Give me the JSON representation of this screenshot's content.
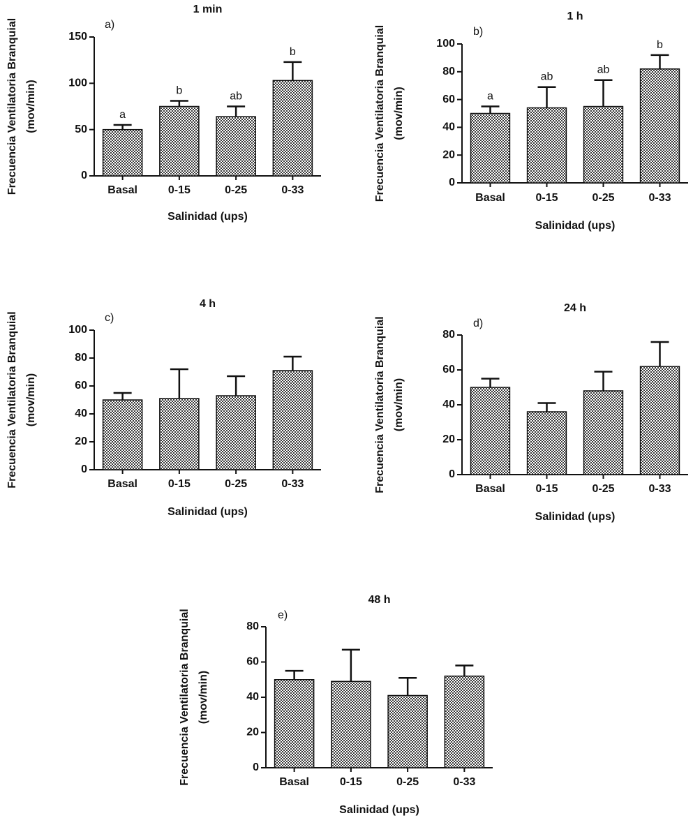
{
  "chart_data": [
    {
      "type": "bar",
      "panel_label": "a)",
      "title": "1 min",
      "xlabel": "Salinidad (ups)",
      "ylabel_line1": "Frecuencia Ventilatoria Branquial",
      "ylabel_line2": "(mov/min)",
      "categories": [
        "Basal",
        "0-15",
        "0-25",
        "0-33"
      ],
      "values": [
        50,
        75,
        64,
        103
      ],
      "error_upper": [
        55,
        81,
        75,
        123
      ],
      "significance": [
        "a",
        "b",
        "ab",
        "b"
      ],
      "ylim": [
        0,
        150
      ],
      "yticks": [
        0,
        50,
        100,
        150
      ]
    },
    {
      "type": "bar",
      "panel_label": "b)",
      "title": "1 h",
      "xlabel": "Salinidad (ups)",
      "ylabel_line1": "Frecuencia Ventilatoria Branquial",
      "ylabel_line2": "(mov/min)",
      "categories": [
        "Basal",
        "0-15",
        "0-25",
        "0-33"
      ],
      "values": [
        50,
        54,
        55,
        82
      ],
      "error_upper": [
        55,
        69,
        74,
        92
      ],
      "significance": [
        "a",
        "ab",
        "ab",
        "b"
      ],
      "ylim": [
        0,
        100
      ],
      "yticks": [
        0,
        20,
        40,
        60,
        80,
        100
      ]
    },
    {
      "type": "bar",
      "panel_label": "c)",
      "title": "4 h",
      "xlabel": "Salinidad (ups)",
      "ylabel_line1": "Frecuencia Ventilatoria Branquial",
      "ylabel_line2": "(mov/min)",
      "categories": [
        "Basal",
        "0-15",
        "0-25",
        "0-33"
      ],
      "values": [
        50,
        51,
        53,
        71
      ],
      "error_upper": [
        55,
        72,
        67,
        81
      ],
      "significance": [
        "",
        "",
        "",
        ""
      ],
      "ylim": [
        0,
        100
      ],
      "yticks": [
        0,
        20,
        40,
        60,
        80,
        100
      ]
    },
    {
      "type": "bar",
      "panel_label": "d)",
      "title": "24 h",
      "xlabel": "Salinidad (ups)",
      "ylabel_line1": "Frecuencia Ventilatoria Branquial",
      "ylabel_line2": "(mov/min)",
      "categories": [
        "Basal",
        "0-15",
        "0-25",
        "0-33"
      ],
      "values": [
        50,
        36,
        48,
        62
      ],
      "error_upper": [
        55,
        41,
        59,
        76
      ],
      "significance": [
        "",
        "",
        "",
        ""
      ],
      "ylim": [
        0,
        80
      ],
      "yticks": [
        0,
        20,
        40,
        60,
        80
      ]
    },
    {
      "type": "bar",
      "panel_label": "e)",
      "title": "48 h",
      "xlabel": "Salinidad (ups)",
      "ylabel_line1": "Frecuencia Ventilatoria Branquial",
      "ylabel_line2": "(mov/min)",
      "categories": [
        "Basal",
        "0-15",
        "0-25",
        "0-33"
      ],
      "values": [
        50,
        49,
        41,
        52
      ],
      "error_upper": [
        55,
        67,
        51,
        58
      ],
      "significance": [
        "",
        "",
        "",
        ""
      ],
      "ylim": [
        0,
        80
      ],
      "yticks": [
        0,
        20,
        40,
        60,
        80
      ]
    }
  ]
}
